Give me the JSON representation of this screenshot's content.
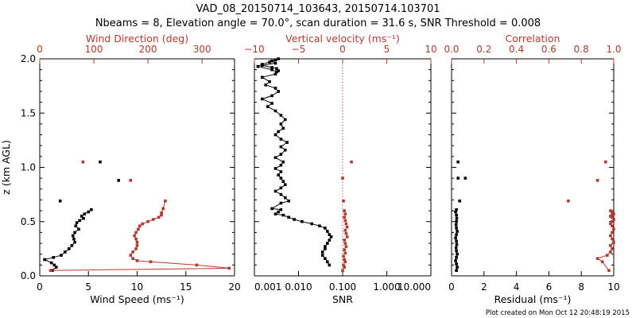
{
  "header": {
    "title_line1": "VAD_08_20150714_103643, 20150714.103701",
    "title_line2": "Nbeams = 8, Elevation angle = 70.0°, scan duration = 31.6 s, SNR Threshold = 0.008"
  },
  "footer": {
    "created": "Plot created on Mon Oct 12 20:48:19 2015"
  },
  "colors": {
    "black": "#000000",
    "red": "#b03a2e"
  },
  "chart_data": [
    {
      "type": "scatter",
      "panel": "wind",
      "ylabel": "z (km AGL)",
      "ylim": [
        0.0,
        2.0
      ],
      "yticks": [
        0.0,
        0.5,
        1.0,
        1.5,
        2.0
      ],
      "ytick_labels": [
        "0.0",
        "0.5",
        "1.0",
        "1.5",
        "2.0"
      ],
      "xlabel": "Wind Speed (ms⁻¹)",
      "xlim": [
        0,
        20
      ],
      "xticks": [
        0,
        5,
        10,
        15,
        20
      ],
      "xtick_labels": [
        "0",
        "5",
        "10",
        "15",
        "20"
      ],
      "top_xlabel": "Wind Direction (deg)",
      "top_xlim": [
        0,
        360
      ],
      "top_xticks": [
        0,
        100,
        200,
        300
      ],
      "top_xtick_labels": [
        "0",
        "100",
        "200",
        "300"
      ],
      "series": [
        {
          "name": "Wind Speed",
          "color": "#000000",
          "connected_x": [
            1.3,
            1.7,
            1.5,
            1.2,
            0.5,
            1.4,
            2.2,
            2.6,
            3.0,
            3.3,
            3.6,
            3.5,
            3.4,
            3.6,
            4.0,
            3.7,
            3.8,
            4.1,
            4.5,
            4.3,
            4.6,
            5.0,
            5.3
          ],
          "connected_z": [
            0.05,
            0.08,
            0.1,
            0.12,
            0.15,
            0.17,
            0.19,
            0.22,
            0.25,
            0.28,
            0.31,
            0.34,
            0.37,
            0.4,
            0.43,
            0.46,
            0.49,
            0.51,
            0.53,
            0.55,
            0.57,
            0.59,
            0.61
          ],
          "isolated_x": [
            2.1,
            6.2,
            8.1
          ],
          "isolated_z": [
            0.69,
            1.05,
            0.88
          ]
        },
        {
          "name": "Wind Direction",
          "color": "#b03a2e",
          "connected_x": [
            20,
            350,
            290,
            205,
            180,
            172,
            168,
            172,
            178,
            180,
            180,
            178,
            175,
            178,
            182,
            185,
            190,
            200,
            210,
            220,
            225,
            225,
            228,
            232
          ],
          "connected_z": [
            0.05,
            0.07,
            0.1,
            0.13,
            0.14,
            0.16,
            0.19,
            0.22,
            0.25,
            0.28,
            0.31,
            0.34,
            0.37,
            0.4,
            0.43,
            0.46,
            0.48,
            0.5,
            0.52,
            0.54,
            0.56,
            0.58,
            0.62,
            0.69
          ],
          "isolated_x": [
            80,
            168
          ],
          "isolated_z": [
            1.05,
            0.88
          ]
        }
      ]
    },
    {
      "type": "scatter",
      "panel": "snr",
      "ylim": [
        0.0,
        2.0
      ],
      "xlabel": "SNR",
      "xscale": "log",
      "xlim": [
        0.001,
        10.0
      ],
      "xticks": [
        0.001,
        0.01,
        0.1,
        1.0,
        10.0
      ],
      "xtick_labels": [
        "0.001",
        "0.010",
        "0.100",
        "1.000",
        "10.000"
      ],
      "top_xlabel": "Vertical velocity (ms⁻¹)",
      "top_xlim": [
        -10,
        10
      ],
      "top_xticks": [
        -10,
        -5,
        0,
        5,
        10
      ],
      "top_xtick_labels": [
        "−10",
        "−5",
        "0",
        "5",
        "10"
      ],
      "reference_line": {
        "axis": "top",
        "value": 0,
        "style": "dotted"
      },
      "series": [
        {
          "name": "SNR",
          "color": "#000000",
          "x": [
            0.05,
            0.045,
            0.04,
            0.035,
            0.035,
            0.04,
            0.04,
            0.045,
            0.05,
            0.055,
            0.05,
            0.045,
            0.04,
            0.03,
            0.02,
            0.012,
            0.008,
            0.006,
            0.0045,
            0.003,
            0.0035,
            0.004,
            0.0025,
            0.004,
            0.006,
            0.005,
            0.004,
            0.003,
            0.004,
            0.005,
            0.0045,
            0.004,
            0.0035,
            0.004,
            0.003,
            0.004,
            0.0045,
            0.003,
            0.004,
            0.005,
            0.004,
            0.0055,
            0.004,
            0.003,
            0.0035,
            0.0045,
            0.004,
            0.005,
            0.004,
            0.003,
            0.002,
            0.0025,
            0.0015,
            0.0025,
            0.0035,
            0.003,
            0.0018,
            0.0022,
            0.0015,
            0.003,
            0.0032,
            0.0025,
            0.0012,
            0.0015,
            0.0022,
            0.003,
            0.0035,
            0.0025,
            0.003,
            0.0015,
            0.0025,
            0.0032,
            0.0035
          ],
          "z": [
            0.1,
            0.13,
            0.16,
            0.19,
            0.22,
            0.25,
            0.27,
            0.3,
            0.33,
            0.36,
            0.38,
            0.41,
            0.44,
            0.46,
            0.48,
            0.5,
            0.52,
            0.54,
            0.56,
            0.57,
            0.59,
            0.61,
            0.62,
            0.67,
            0.69,
            0.72,
            0.75,
            0.78,
            0.81,
            0.84,
            0.87,
            0.9,
            0.93,
            0.96,
            0.99,
            1.02,
            1.05,
            1.09,
            1.12,
            1.16,
            1.19,
            1.23,
            1.26,
            1.3,
            1.33,
            1.36,
            1.4,
            1.44,
            1.48,
            1.52,
            1.56,
            1.59,
            1.63,
            1.66,
            1.7,
            1.73,
            1.76,
            1.79,
            1.83,
            1.86,
            1.88,
            1.9,
            1.93,
            1.95,
            1.97,
            1.99,
            2.0,
            1.98,
            1.96,
            1.94,
            1.92,
            1.91,
            1.89
          ]
        },
        {
          "name": "Vertical velocity",
          "color": "#b03a2e",
          "x": [
            0.0,
            0.2,
            0.1,
            0.3,
            0.2,
            0.1,
            0.3,
            0.2,
            0.4,
            0.3,
            0.2,
            0.5,
            0.4,
            0.3,
            0.5,
            0.4,
            0.3,
            0.2,
            0.3,
            0.2,
            0.1,
            0.0,
            1.0
          ],
          "z": [
            0.05,
            0.08,
            0.1,
            0.13,
            0.15,
            0.18,
            0.21,
            0.24,
            0.27,
            0.3,
            0.33,
            0.36,
            0.39,
            0.42,
            0.45,
            0.48,
            0.51,
            0.54,
            0.57,
            0.6,
            0.69,
            0.9,
            1.05
          ]
        }
      ]
    },
    {
      "type": "scatter",
      "panel": "residual",
      "ylim": [
        0.0,
        2.0
      ],
      "xlabel": "Residual (ms⁻¹)",
      "xlim": [
        0,
        10
      ],
      "xticks": [
        0,
        2,
        4,
        6,
        8,
        10
      ],
      "xtick_labels": [
        "0",
        "2",
        "4",
        "6",
        "8",
        "10"
      ],
      "top_xlabel": "Correlation",
      "top_xlim": [
        0.0,
        1.0
      ],
      "top_xticks": [
        0.0,
        0.2,
        0.4,
        0.6,
        0.8,
        1.0
      ],
      "top_xtick_labels": [
        "0.0",
        "0.2",
        "0.4",
        "0.6",
        "0.8",
        "1.0"
      ],
      "series": [
        {
          "name": "Residual",
          "color": "#000000",
          "connected_x": [
            0.3,
            0.35,
            0.3,
            0.25,
            0.3,
            0.35,
            0.3,
            0.28,
            0.32,
            0.3,
            0.25,
            0.3,
            0.35,
            0.3,
            0.28,
            0.3,
            0.32,
            0.3,
            0.25,
            0.3
          ],
          "connected_z": [
            0.05,
            0.08,
            0.11,
            0.14,
            0.17,
            0.2,
            0.23,
            0.26,
            0.29,
            0.32,
            0.35,
            0.38,
            0.41,
            0.44,
            0.47,
            0.5,
            0.53,
            0.56,
            0.59,
            0.61
          ],
          "isolated_x": [
            0.5,
            0.4,
            0.85,
            0.4
          ],
          "isolated_z": [
            0.69,
            1.05,
            0.9,
            0.9
          ]
        },
        {
          "name": "Correlation",
          "color": "#b03a2e",
          "connected_x": [
            0.97,
            0.93,
            0.9,
            0.96,
            0.98,
            0.99,
            0.98,
            1.0,
            0.99,
            0.98,
            0.99,
            1.0,
            0.99,
            0.98,
            0.99,
            1.0,
            0.99,
            0.98,
            0.99,
            1.0,
            0.99,
            0.98
          ],
          "connected_z": [
            0.05,
            0.13,
            0.16,
            0.19,
            0.22,
            0.25,
            0.28,
            0.31,
            0.34,
            0.37,
            0.4,
            0.43,
            0.46,
            0.48,
            0.5,
            0.52,
            0.54,
            0.55,
            0.56,
            0.57,
            0.58,
            0.6
          ],
          "isolated_x": [
            0.72,
            0.9,
            0.95
          ],
          "isolated_z": [
            0.69,
            0.88,
            1.05
          ]
        }
      ]
    }
  ]
}
